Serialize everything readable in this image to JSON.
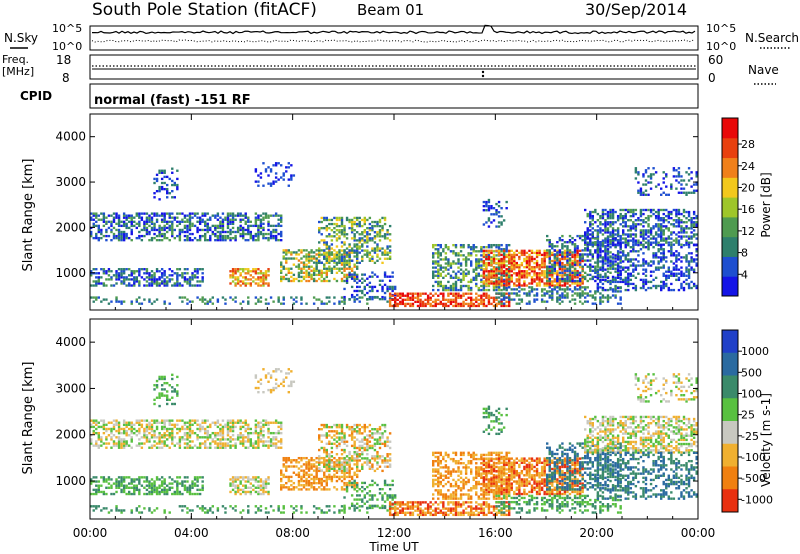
{
  "header": {
    "title": "South Pole Station (fitACF)",
    "beam": "Beam 01",
    "date": "30/Sep/2014"
  },
  "top_panels": {
    "nsky_label": "N.Sky",
    "nsearch_label": "N.Search",
    "nsky_top_tick": "10^5",
    "nsky_bottom_tick": "10^0",
    "nsearch_top_tick": "10^5",
    "nsearch_bottom_tick": "10^0",
    "freq_label_1": "Freq.",
    "freq_label_2": "[MHz]",
    "freq_top_tick": "18",
    "freq_bottom_tick": "8",
    "nave_label": "Nave",
    "nave_top_tick": "60",
    "nave_bottom_tick": "0",
    "cpid_label": "CPID",
    "cpid_text": "normal (fast) -151 RF"
  },
  "chart_data": [
    {
      "type": "heatmap",
      "name": "power",
      "ylabel": "Slant Range [km]",
      "colorbar_label": "Power [dB]",
      "yticks": [
        "1000",
        "2000",
        "3000",
        "4000"
      ],
      "ylim": [
        180,
        4500
      ],
      "colorbar_ticks": [
        "4",
        "8",
        "12",
        "16",
        "20",
        "24",
        "28"
      ],
      "colors": [
        "#1414e6",
        "#1e4fd0",
        "#2e7f6c",
        "#4f9b50",
        "#9ec62a",
        "#f2c81c",
        "#f0801a",
        "#e8400e",
        "#e80808"
      ]
    },
    {
      "type": "heatmap",
      "name": "velocity",
      "ylabel": "Slant Range [km]",
      "colorbar_label": "Velocity [m s-1]",
      "xlabel": "Time UT",
      "xticks": [
        "00:00",
        "04:00",
        "08:00",
        "12:00",
        "16:00",
        "20:00",
        "00:00"
      ],
      "yticks": [
        "1000",
        "2000",
        "3000",
        "4000"
      ],
      "ylim": [
        180,
        4500
      ],
      "colorbar_ticks": [
        "1000",
        "500",
        "100",
        "25",
        "-25",
        "-100",
        "-500",
        "-1000"
      ],
      "colors": [
        "#2040c8",
        "#2a6aa0",
        "#3a8a6a",
        "#58c040",
        "#c8c8c0",
        "#f0b030",
        "#f08010",
        "#e83010"
      ]
    }
  ]
}
